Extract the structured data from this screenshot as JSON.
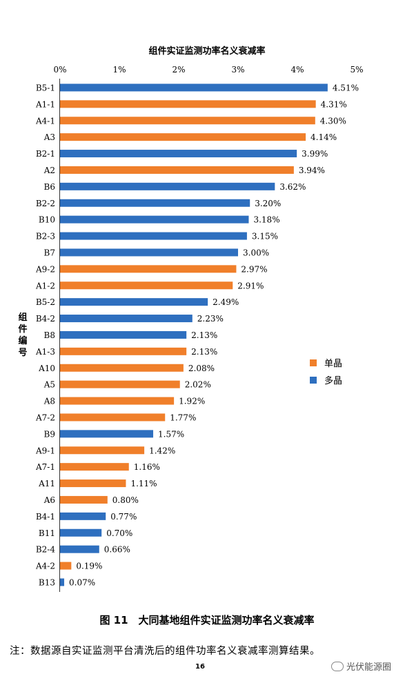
{
  "chart_data": {
    "type": "bar",
    "orientation": "horizontal",
    "title": "组件实证监测功率名义衰减率",
    "ylabel": "组件编号",
    "xlim": [
      0,
      5
    ],
    "xticks": [
      "0%",
      "1%",
      "2%",
      "3%",
      "4%",
      "5%"
    ],
    "grid": false,
    "legend_position": "right",
    "series": [
      {
        "name": "单晶",
        "color": "#F07F2A"
      },
      {
        "name": "多晶",
        "color": "#2E6FBF"
      }
    ],
    "bars": [
      {
        "category": "B5-1",
        "value": 4.51,
        "label": "4.51%",
        "series": 1
      },
      {
        "category": "A1-1",
        "value": 4.31,
        "label": "4.31%",
        "series": 0
      },
      {
        "category": "A4-1",
        "value": 4.3,
        "label": "4.30%",
        "series": 0
      },
      {
        "category": "A3",
        "value": 4.14,
        "label": "4.14%",
        "series": 0
      },
      {
        "category": "B2-1",
        "value": 3.99,
        "label": "3.99%",
        "series": 1
      },
      {
        "category": "A2",
        "value": 3.94,
        "label": "3.94%",
        "series": 0
      },
      {
        "category": "B6",
        "value": 3.62,
        "label": "3.62%",
        "series": 1
      },
      {
        "category": "B2-2",
        "value": 3.2,
        "label": "3.20%",
        "series": 1
      },
      {
        "category": "B10",
        "value": 3.18,
        "label": "3.18%",
        "series": 1
      },
      {
        "category": "B2-3",
        "value": 3.15,
        "label": "3.15%",
        "series": 1
      },
      {
        "category": "B7",
        "value": 3.0,
        "label": "3.00%",
        "series": 1
      },
      {
        "category": "A9-2",
        "value": 2.97,
        "label": "2.97%",
        "series": 0
      },
      {
        "category": "A1-2",
        "value": 2.91,
        "label": "2.91%",
        "series": 0
      },
      {
        "category": "B5-2",
        "value": 2.49,
        "label": "2.49%",
        "series": 1
      },
      {
        "category": "B4-2",
        "value": 2.23,
        "label": "2.23%",
        "series": 1
      },
      {
        "category": "B8",
        "value": 2.13,
        "label": "2.13%",
        "series": 1
      },
      {
        "category": "A1-3",
        "value": 2.13,
        "label": "2.13%",
        "series": 0
      },
      {
        "category": "A10",
        "value": 2.08,
        "label": "2.08%",
        "series": 0
      },
      {
        "category": "A5",
        "value": 2.02,
        "label": "2.02%",
        "series": 0
      },
      {
        "category": "A8",
        "value": 1.92,
        "label": "1.92%",
        "series": 0
      },
      {
        "category": "A7-2",
        "value": 1.77,
        "label": "1.77%",
        "series": 0
      },
      {
        "category": "B9",
        "value": 1.57,
        "label": "1.57%",
        "series": 1
      },
      {
        "category": "A9-1",
        "value": 1.42,
        "label": "1.42%",
        "series": 0
      },
      {
        "category": "A7-1",
        "value": 1.16,
        "label": "1.16%",
        "series": 0
      },
      {
        "category": "A11",
        "value": 1.11,
        "label": "1.11%",
        "series": 0
      },
      {
        "category": "A6",
        "value": 0.8,
        "label": "0.80%",
        "series": 0
      },
      {
        "category": "B4-1",
        "value": 0.77,
        "label": "0.77%",
        "series": 1
      },
      {
        "category": "B11",
        "value": 0.7,
        "label": "0.70%",
        "series": 1
      },
      {
        "category": "B2-4",
        "value": 0.66,
        "label": "0.66%",
        "series": 1
      },
      {
        "category": "A4-2",
        "value": 0.19,
        "label": "0.19%",
        "series": 0
      },
      {
        "category": "B13",
        "value": 0.07,
        "label": "0.07%",
        "series": 1
      }
    ]
  },
  "caption": "图 11　大同基地组件实证监测功率名义衰减率",
  "note": "注：数据源自实证监测平台清洗后的组件功率名义衰减率测算结果。",
  "page_number": "16",
  "watermark": "光伏能源圈"
}
